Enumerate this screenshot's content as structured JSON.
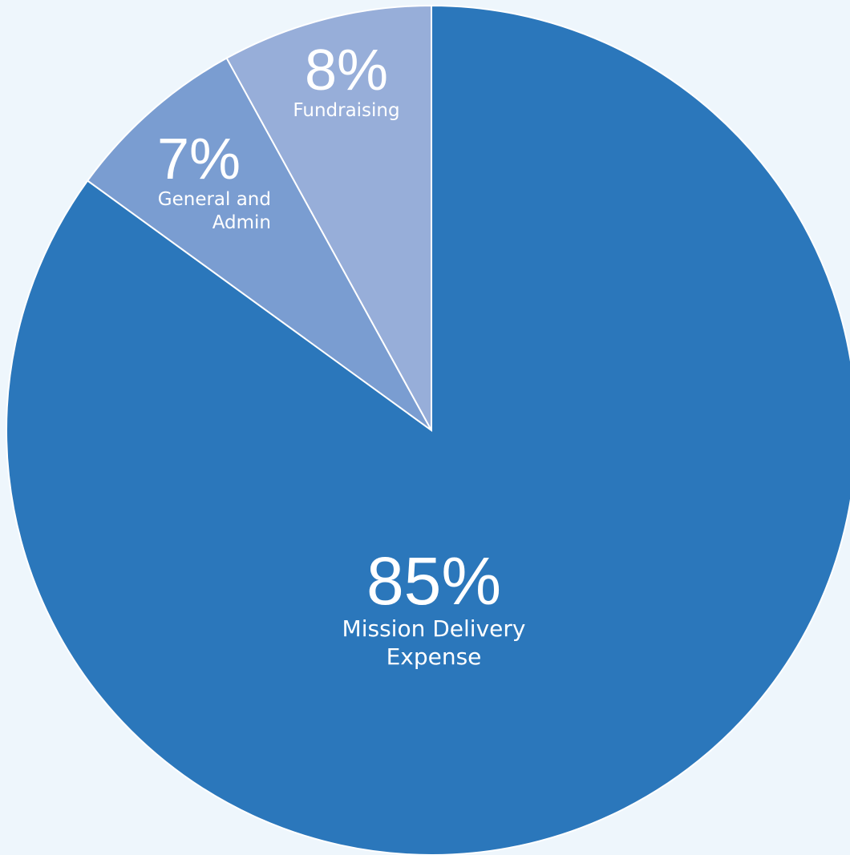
{
  "chart_data": {
    "type": "pie",
    "categories": [
      "Mission Delivery Expense",
      "General and Admin",
      "Fundraising"
    ],
    "values": [
      85,
      7,
      8
    ],
    "value_labels": [
      "85%",
      "7%",
      "8%"
    ],
    "colors": [
      "#2b77bb",
      "#7a9dd1",
      "#97aed9"
    ]
  }
}
